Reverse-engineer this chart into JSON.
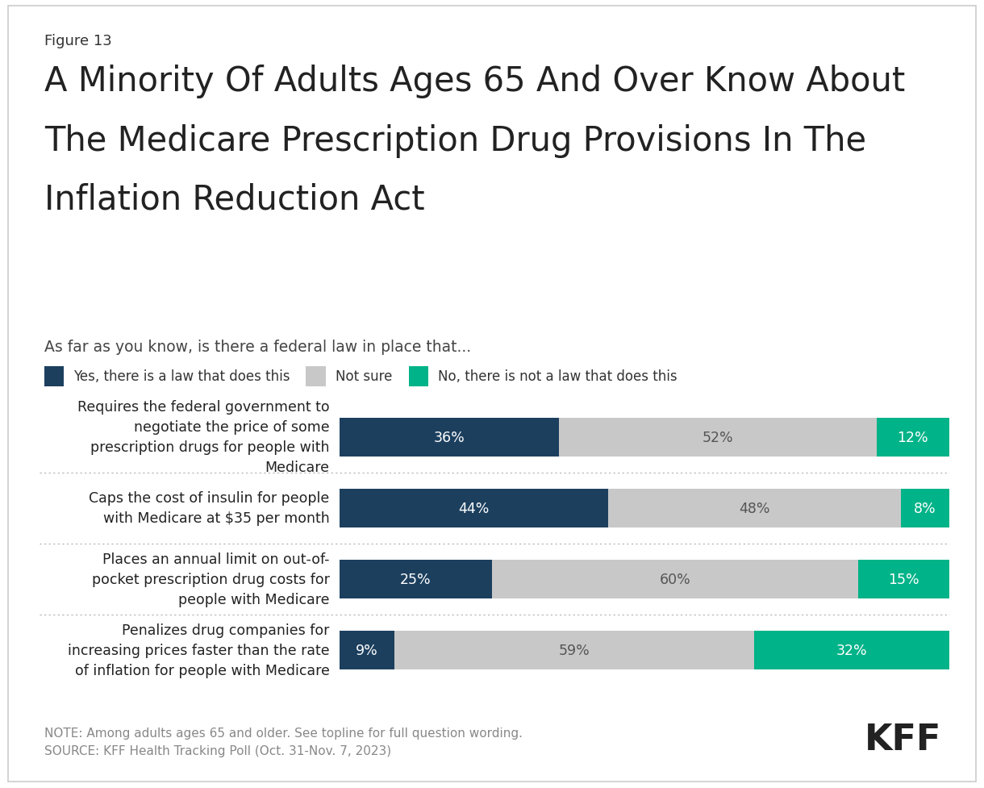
{
  "figure_label": "Figure 13",
  "title_line1": "A Minority Of Adults Ages 65 And Over Know About",
  "title_line2": "The Medicare Prescription Drug Provisions In The",
  "title_line3": "Inflation Reduction Act",
  "subtitle": "As far as you know, is there a federal law in place that...",
  "legend_labels": [
    "Yes, there is a law that does this",
    "Not sure",
    "No, there is not a law that does this"
  ],
  "legend_colors": [
    "#1c3f5e",
    "#c8c8c8",
    "#00b388"
  ],
  "categories": [
    "Requires the federal government to\nnegotiate the price of some\nprescription drugs for people with\nMedicare",
    "Caps the cost of insulin for people\nwith Medicare at $35 per month",
    "Places an annual limit on out-of-\npocket prescription drug costs for\npeople with Medicare",
    "Penalizes drug companies for\nincreasing prices faster than the rate\nof inflation for people with Medicare"
  ],
  "yes_values": [
    36,
    44,
    25,
    9
  ],
  "not_sure_values": [
    52,
    48,
    60,
    59
  ],
  "no_values": [
    12,
    8,
    15,
    32
  ],
  "yes_color": "#1c3f5e",
  "not_sure_color": "#c8c8c8",
  "no_color": "#00b388",
  "background_color": "#ffffff",
  "note_text": "NOTE: Among adults ages 65 and older. See topline for full question wording.\nSOURCE: KFF Health Tracking Poll (Oct. 31-Nov. 7, 2023)",
  "kff_label": "KFF",
  "border_color": "#cccccc"
}
